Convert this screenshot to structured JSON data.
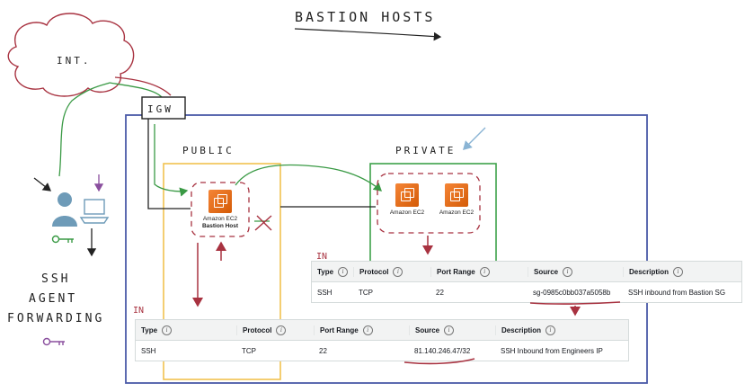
{
  "title": "BASTION HOSTS",
  "labels": {
    "internet": "INT.",
    "igw": "IGW",
    "public": "PUBLIC",
    "private": "PRIVATE",
    "inbound_private": "IN",
    "inbound_public": "IN",
    "ssh_agent": [
      "SSH",
      "AGENT",
      "FORWARDING"
    ]
  },
  "nodes": {
    "bastion": {
      "label": "Amazon EC2",
      "sub": "Bastion Host"
    },
    "private1": {
      "label": "Amazon EC2"
    },
    "private2": {
      "label": "Amazon EC2"
    }
  },
  "private_sg": {
    "headers": [
      "Type",
      "Protocol",
      "Port Range",
      "Source",
      "Description"
    ],
    "row": [
      "SSH",
      "TCP",
      "22",
      "sg-0985c0bb037a5058b",
      "SSH inbound from Bastion SG"
    ]
  },
  "public_sg": {
    "headers": [
      "Type",
      "Protocol",
      "Port Range",
      "Source",
      "Description"
    ],
    "row": [
      "SSH",
      "TCP",
      "22",
      "81.140.246.47/32",
      "SSH Inbound from Engineers IP"
    ]
  },
  "colors": {
    "vpc": "#4a5aa8",
    "public_subnet": "#f2c24f",
    "private_subnet": "#3da24a",
    "flow": "#3a9a45",
    "security": "#a83240",
    "hint_arrow": "#8ab4d4",
    "key": "#8a4f9e"
  }
}
